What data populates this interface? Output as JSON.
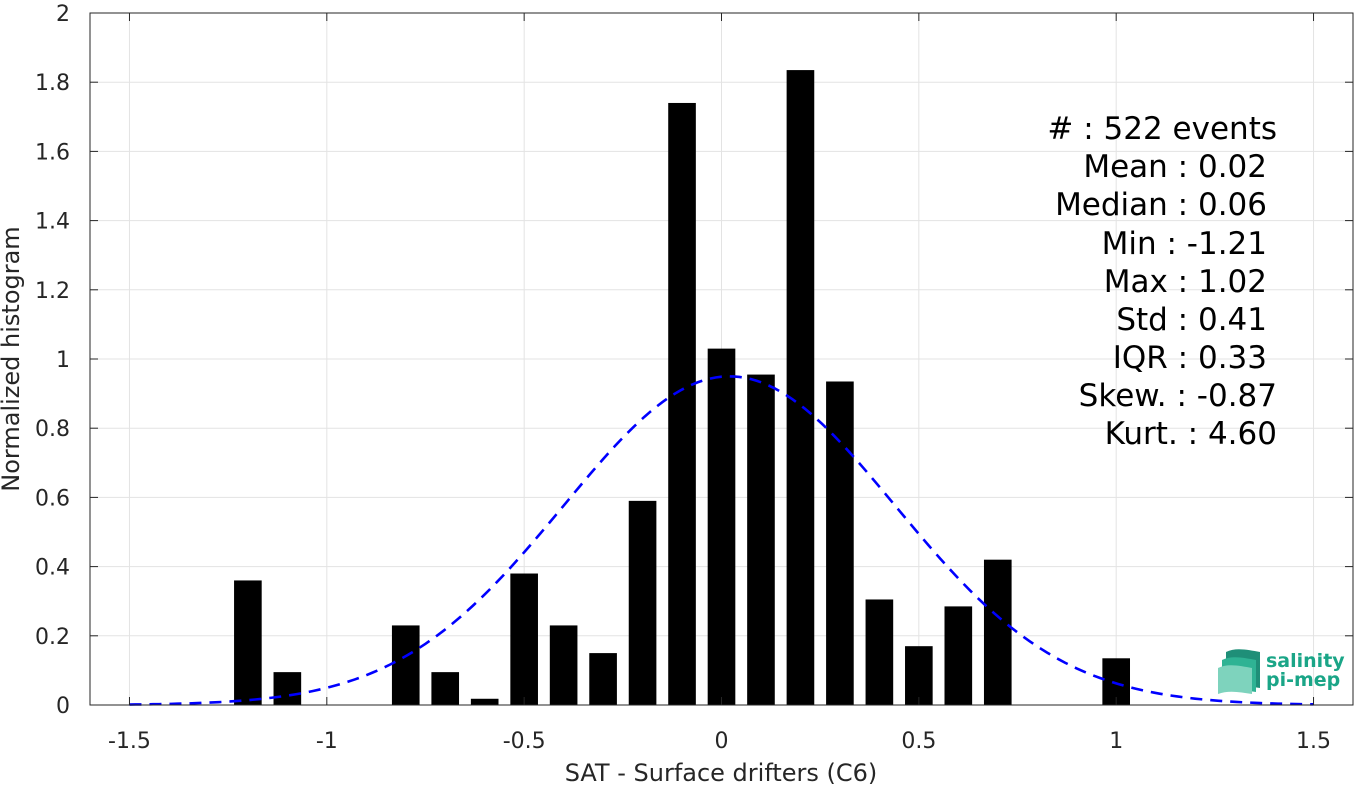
{
  "chart_data": {
    "type": "bar",
    "xlabel": "SAT - Surface drifters (C6)",
    "ylabel": "Normalized histogram",
    "xlim": [
      -1.6,
      1.6
    ],
    "ylim": [
      0,
      2
    ],
    "grid": true,
    "xticks": [
      "-1.5",
      "-1",
      "-0.5",
      "0",
      "0.5",
      "1",
      "1.5"
    ],
    "yticks": [
      "0",
      "0.2",
      "0.4",
      "0.6",
      "0.8",
      "1",
      "1.2",
      "1.4",
      "1.6",
      "1.8",
      "2"
    ],
    "bar_width": 0.07,
    "bars": [
      {
        "x": -1.2,
        "value": 0.36
      },
      {
        "x": -1.1,
        "value": 0.095
      },
      {
        "x": -0.8,
        "value": 0.23
      },
      {
        "x": -0.7,
        "value": 0.095
      },
      {
        "x": -0.6,
        "value": 0.018
      },
      {
        "x": -0.5,
        "value": 0.38
      },
      {
        "x": -0.4,
        "value": 0.23
      },
      {
        "x": -0.3,
        "value": 0.15
      },
      {
        "x": -0.2,
        "value": 0.59
      },
      {
        "x": -0.1,
        "value": 1.74
      },
      {
        "x": 0.0,
        "value": 1.03
      },
      {
        "x": 0.1,
        "value": 0.955
      },
      {
        "x": 0.2,
        "value": 1.835
      },
      {
        "x": 0.3,
        "value": 0.935
      },
      {
        "x": 0.4,
        "value": 0.305
      },
      {
        "x": 0.5,
        "value": 0.17
      },
      {
        "x": 0.6,
        "value": 0.285
      },
      {
        "x": 0.7,
        "value": 0.42
      },
      {
        "x": 1.0,
        "value": 0.135
      }
    ],
    "fit_curve": {
      "style": "dashed",
      "color": "#0000ff",
      "mean": 0.02,
      "std": 0.42,
      "x_range": [
        -1.5,
        1.5
      ]
    },
    "bar_color": "#000000"
  },
  "stats": [
    {
      "label": "#  : 522 events"
    },
    {
      "label": "Mean : 0.02"
    },
    {
      "label": "Median : 0.06"
    },
    {
      "label": "Min : -1.21"
    },
    {
      "label": "Max : 1.02"
    },
    {
      "label": "Std : 0.41"
    },
    {
      "label": "IQR : 0.33"
    },
    {
      "label": "Skew. : -0.87"
    },
    {
      "label": "Kurt. : 4.60"
    }
  ],
  "logo": {
    "line1": "salinity",
    "line2": "pi-mep",
    "icon": "wave-layers-icon",
    "color": "#1aa587"
  }
}
